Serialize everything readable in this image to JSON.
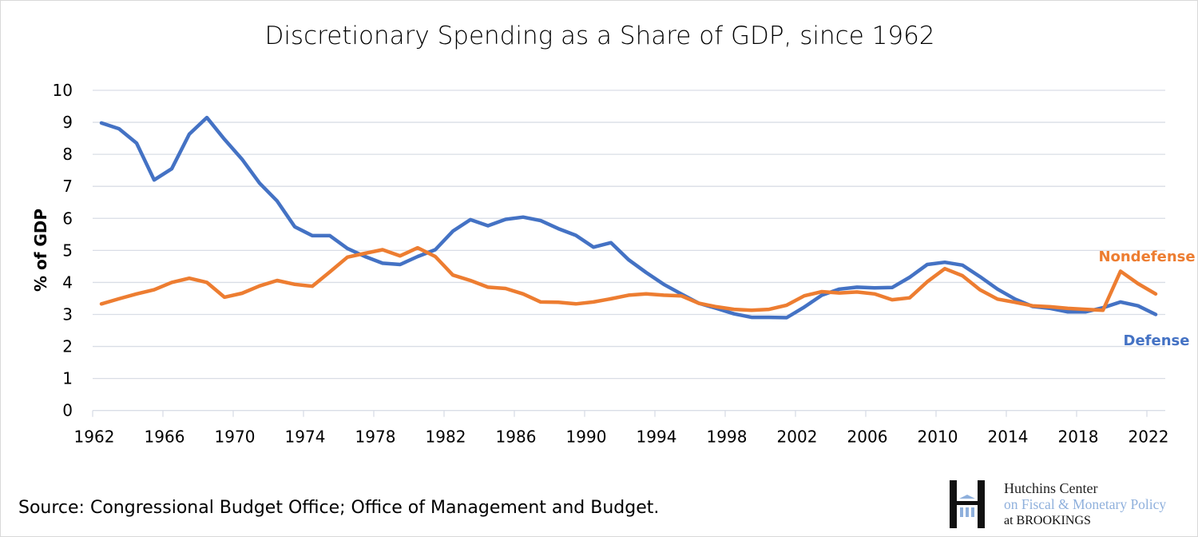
{
  "chart_data": {
    "type": "line",
    "title": "Discretionary Spending as a Share of GDP, since 1962",
    "xlabel": "",
    "ylabel": "% of GDP",
    "ylim": [
      0,
      10
    ],
    "yticks": [
      "0",
      "1",
      "2",
      "3",
      "4",
      "5",
      "6",
      "7",
      "8",
      "9",
      "10"
    ],
    "xticks": [
      "1962",
      "1966",
      "1970",
      "1974",
      "1978",
      "1982",
      "1986",
      "1990",
      "1994",
      "1998",
      "2002",
      "2006",
      "2010",
      "2014",
      "2018",
      "2022"
    ],
    "grid": true,
    "x_start": 1962,
    "series": [
      {
        "name": "Defense",
        "color": "#4472c4",
        "values": [
          8.98,
          8.8,
          8.35,
          7.2,
          7.55,
          8.63,
          9.15,
          8.47,
          7.85,
          7.1,
          6.54,
          5.74,
          5.46,
          5.46,
          5.06,
          4.81,
          4.6,
          4.56,
          4.81,
          5.02,
          5.6,
          5.96,
          5.77,
          5.97,
          6.04,
          5.93,
          5.68,
          5.47,
          5.1,
          5.24,
          4.71,
          4.31,
          3.94,
          3.64,
          3.35,
          3.19,
          3.02,
          2.91,
          2.91,
          2.9,
          3.23,
          3.6,
          3.79,
          3.85,
          3.83,
          3.84,
          4.16,
          4.56,
          4.63,
          4.54,
          4.18,
          3.79,
          3.48,
          3.25,
          3.19,
          3.08,
          3.08,
          3.21,
          3.39,
          3.27,
          3.0
        ]
      },
      {
        "name": "Nondefense",
        "color": "#ed7d31",
        "values": [
          3.33,
          3.49,
          3.64,
          3.77,
          4.0,
          4.13,
          4.0,
          3.54,
          3.66,
          3.89,
          4.06,
          3.94,
          3.88,
          4.33,
          4.79,
          4.91,
          5.02,
          4.83,
          5.08,
          4.81,
          4.23,
          4.06,
          3.85,
          3.81,
          3.64,
          3.39,
          3.38,
          3.33,
          3.39,
          3.49,
          3.6,
          3.64,
          3.6,
          3.58,
          3.35,
          3.24,
          3.16,
          3.13,
          3.16,
          3.29,
          3.58,
          3.71,
          3.67,
          3.7,
          3.64,
          3.46,
          3.52,
          4.02,
          4.43,
          4.21,
          3.77,
          3.48,
          3.38,
          3.27,
          3.24,
          3.19,
          3.16,
          3.13,
          4.35,
          3.96,
          3.64
        ]
      }
    ]
  },
  "source": "Source: Congressional Budget Office; Office of Management and Budget.",
  "logo": {
    "line1": "Hutchins Center",
    "line2": "on Fiscal & Monetary Policy",
    "line3": "at BROOKINGS"
  }
}
